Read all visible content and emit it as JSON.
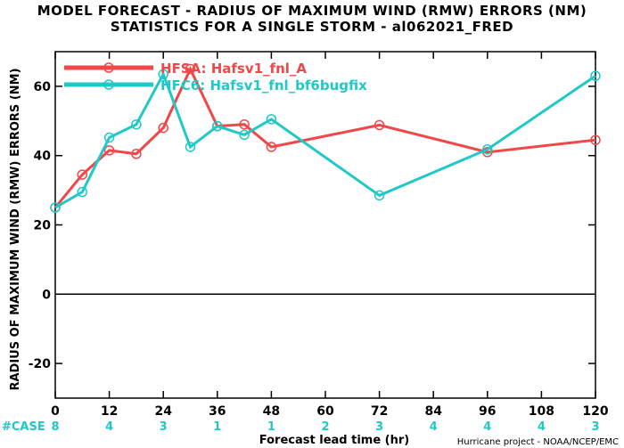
{
  "chart_data": {
    "type": "line",
    "title": "MODEL FORECAST - RADIUS OF MAXIMUM WIND (RMW) ERRORS (NM)",
    "subtitle": "STATISTICS FOR A SINGLE STORM - al062021_FRED",
    "xlabel": "Forecast lead time (hr)",
    "ylabel": "RADIUS OF MAXIMUM WIND (RMW) ERRORS (NM)",
    "xlim": [
      0,
      120
    ],
    "ylim": [
      -30,
      70
    ],
    "xticks": [
      0,
      12,
      24,
      36,
      48,
      60,
      72,
      84,
      96,
      108,
      120
    ],
    "yticks": [
      -20,
      0,
      20,
      40,
      60
    ],
    "zero_line": true,
    "grid": false,
    "legend_position": "top-left",
    "series": [
      {
        "name": "HFSA: Hafsv1_fnl_A",
        "color": "#f04848",
        "x": [
          0,
          6,
          12,
          18,
          24,
          30,
          36,
          42,
          48,
          72,
          96,
          120
        ],
        "y": [
          25,
          34.5,
          41.5,
          40.5,
          48,
          65,
          48.5,
          49,
          42.5,
          48.8,
          41,
          44.5
        ]
      },
      {
        "name": "HFC6: Hafsv1_fnl_bf6bugfix",
        "color": "#20c8c8",
        "x": [
          0,
          6,
          12,
          18,
          24,
          30,
          36,
          42,
          48,
          72,
          96,
          120
        ],
        "y": [
          25,
          29.5,
          45.2,
          49,
          63.5,
          42.5,
          48.5,
          46,
          50.5,
          28.5,
          41.8,
          63
        ]
      }
    ],
    "case_label": "#CASE",
    "case_colors": [
      "#f04848",
      "#20c8c8"
    ],
    "cases": {
      "x": [
        0,
        12,
        24,
        36,
        48,
        60,
        72,
        84,
        96,
        108,
        120
      ],
      "values": [
        "8",
        "4",
        "3",
        "1",
        "1",
        "2",
        "3",
        "4",
        "4",
        "4",
        "3"
      ]
    },
    "credit": "Hurricane project - NOAA/NCEP/EMC"
  }
}
